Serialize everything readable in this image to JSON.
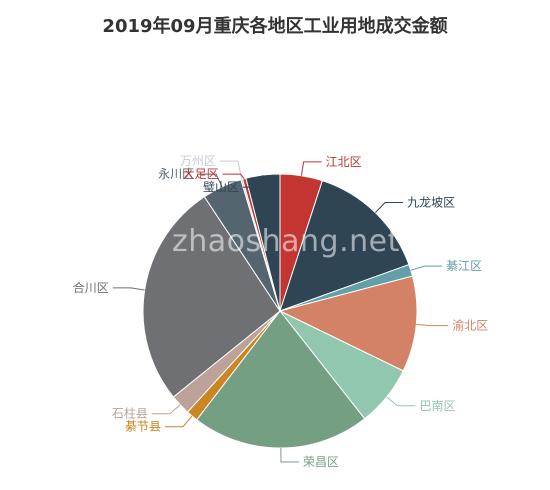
{
  "chart_data": {
    "type": "pie",
    "title": "2019年09月重庆各地区工业用地成交金额",
    "slices": [
      {
        "label": "江北区",
        "value": 5.0,
        "color": "#c23531"
      },
      {
        "label": "九龙坡区",
        "value": 14.5,
        "color": "#2f4554"
      },
      {
        "label": "綦江区",
        "value": 1.4,
        "color": "#61a0a8"
      },
      {
        "label": "渝北区",
        "value": 11.3,
        "color": "#d48265"
      },
      {
        "label": "巴南区",
        "value": 7.2,
        "color": "#91c7ae"
      },
      {
        "label": "荣昌区",
        "value": 21.0,
        "color": "#749f83"
      },
      {
        "label": "綦节县",
        "value": 1.4,
        "color": "#ca8622"
      },
      {
        "label": "石柱县",
        "value": 2.4,
        "color": "#bda29a"
      },
      {
        "label": "合川区",
        "value": 26.5,
        "color": "#6e7074"
      },
      {
        "label": "永川区",
        "value": 4.7,
        "color": "#546570"
      },
      {
        "label": "万州区",
        "value": 0.2,
        "color": "#c4ccd3"
      },
      {
        "label": "大足区",
        "value": 0.4,
        "color": "#c23531"
      },
      {
        "label": "璧山区",
        "value": 4.0,
        "color": "#2f4554"
      }
    ]
  },
  "watermark": "zhaoshang.net"
}
